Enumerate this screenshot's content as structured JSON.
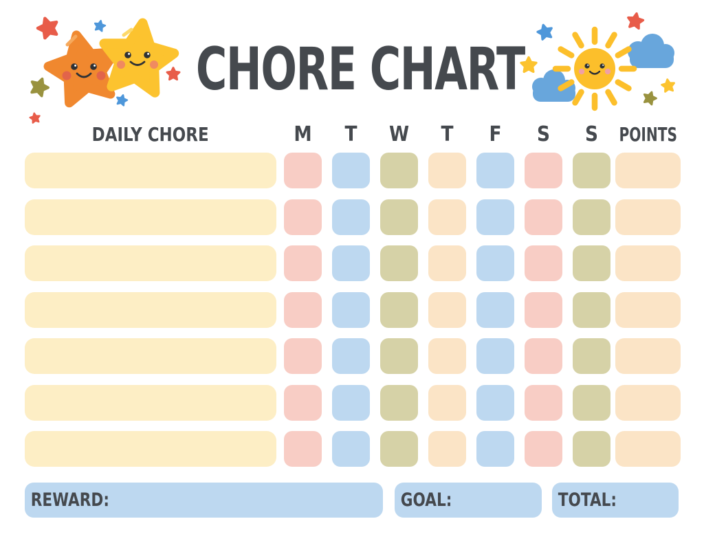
{
  "title": "CHORE CHART",
  "table": {
    "chore_header": "DAILY CHORE",
    "day_headers": [
      "M",
      "T",
      "W",
      "T",
      "F",
      "S",
      "S"
    ],
    "points_header": "POINTS",
    "row_count": 7,
    "chore_cell_color": "cream",
    "day_cell_colors": [
      "pink",
      "blue",
      "olive",
      "peach",
      "blue",
      "pink",
      "olive"
    ],
    "points_cell_color": "peach"
  },
  "footer": {
    "reward_label": "REWARD:",
    "goal_label": "GOAL:",
    "total_label": "TOTAL:"
  },
  "colors": {
    "text": "#45494E",
    "cream": "#FDEEC5",
    "pink": "#F8CDC5",
    "blue": "#BDD8F0",
    "olive": "#D6D2A7",
    "peach": "#FBE4C6",
    "footer_box": "#BDD8F0"
  },
  "decorations": {
    "left_illustration": {
      "name": "two-smiling-stars",
      "orange_star": "#F0882F",
      "yellow_star": "#FCC32F",
      "accent_red": "#E85C49",
      "accent_blue": "#4E97DA",
      "accent_olive": "#99923F"
    },
    "right_illustration": {
      "name": "smiling-sun-with-clouds",
      "sun": "#FCBF2B",
      "cloud": "#68A6DC",
      "accent_red": "#E85C49",
      "accent_blue": "#4E97DA",
      "accent_olive": "#99923F",
      "accent_yellow": "#FCC32F"
    }
  }
}
